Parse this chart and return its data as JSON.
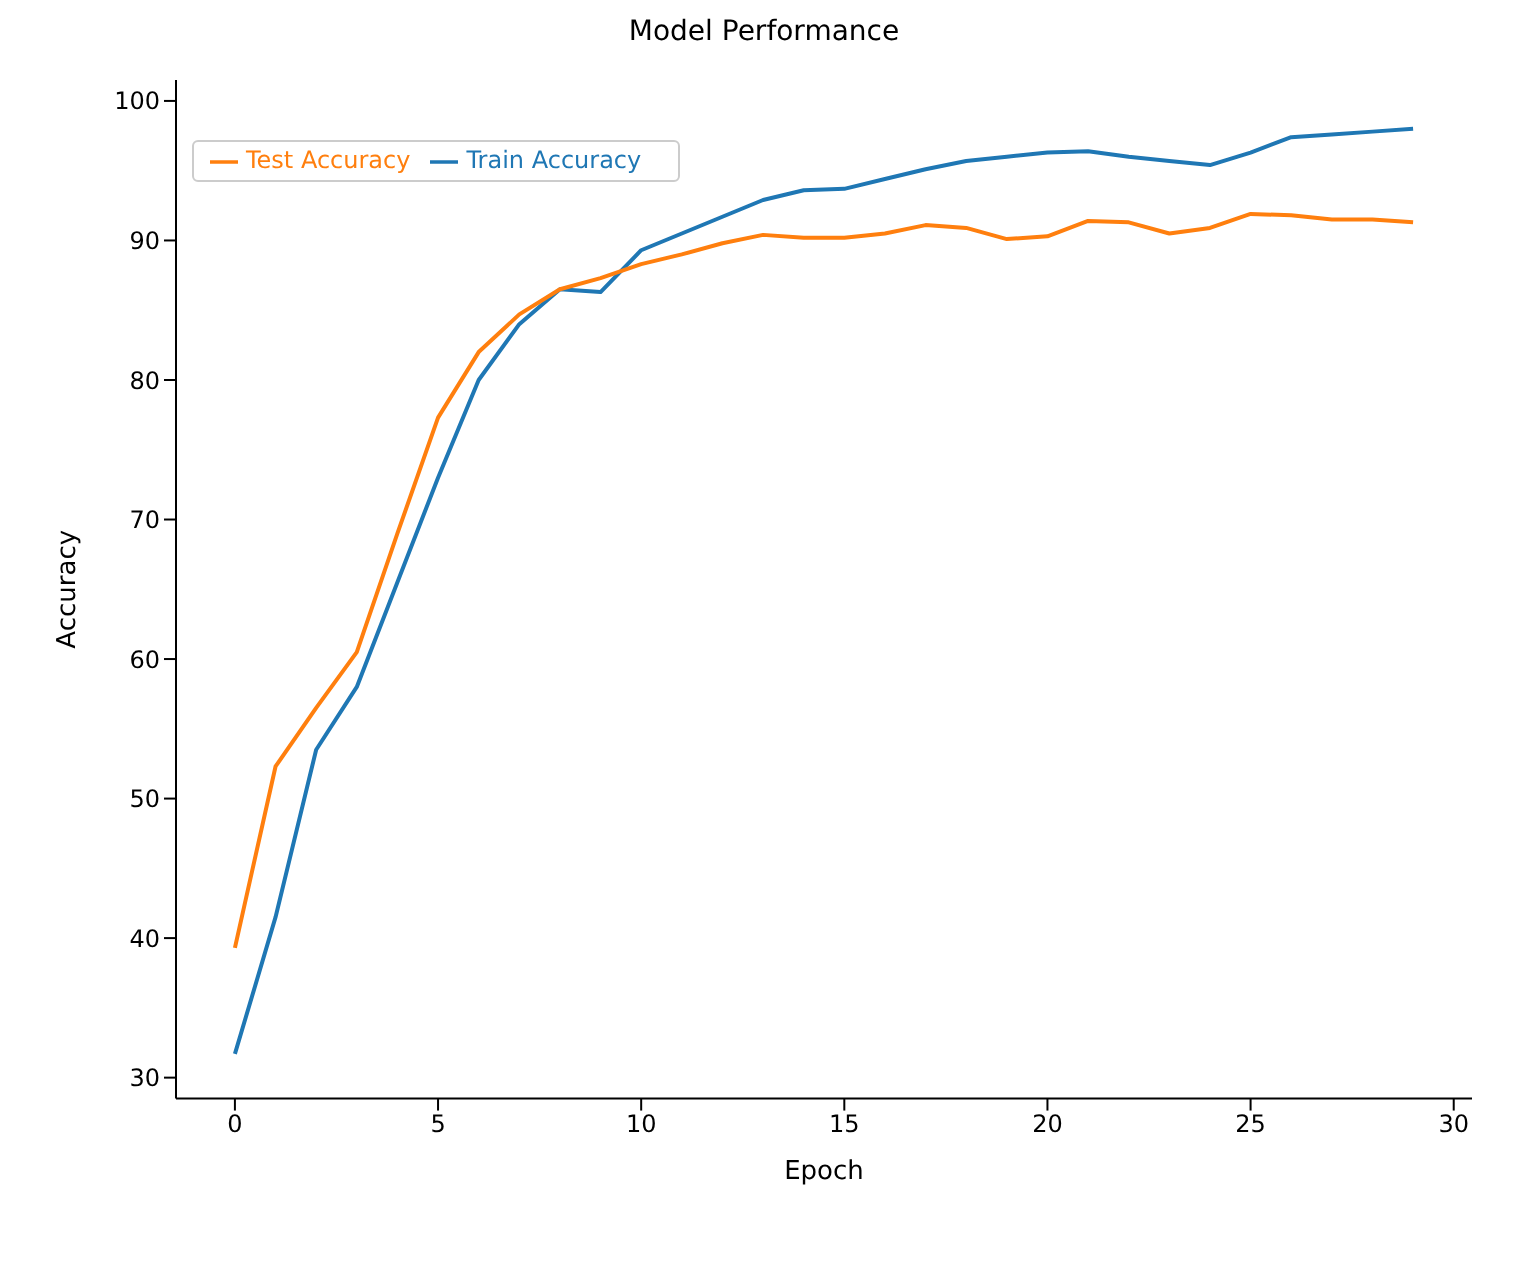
{
  "chart_data": {
    "type": "line",
    "title": "Model Performance",
    "xlabel": "Epoch",
    "ylabel": "Accuracy",
    "x": [
      0,
      1,
      2,
      3,
      4,
      5,
      6,
      7,
      8,
      9,
      10,
      11,
      12,
      13,
      14,
      15,
      16,
      17,
      18,
      19,
      20,
      21,
      22,
      23,
      24,
      25,
      26,
      27,
      28,
      29
    ],
    "series": [
      {
        "name": "Train Accuracy",
        "color": "#1f77b4",
        "values": [
          31.7,
          41.5,
          53.5,
          58,
          65.5,
          73,
          80,
          84,
          86.5,
          86.3,
          89.3,
          90.5,
          91.7,
          92.9,
          93.6,
          93.7,
          94.4,
          95.1,
          95.7,
          96.0,
          96.3,
          96.4,
          96.0,
          95.7,
          95.4,
          96.3,
          97.4,
          97.6,
          97.8,
          98.0
        ]
      },
      {
        "name": "Test Accuracy",
        "color": "#ff7f0e",
        "values": [
          39.3,
          52.3,
          56.5,
          60.5,
          69,
          77.3,
          82,
          84.7,
          86.5,
          87.3,
          88.3,
          89,
          89.8,
          90.4,
          90.2,
          90.2,
          90.5,
          91.1,
          90.9,
          90.1,
          90.3,
          91.4,
          91.3,
          90.5,
          90.9,
          91.9,
          91.8,
          91.5,
          91.5,
          91.3
        ]
      }
    ],
    "xlim": [
      -1.45,
      30.45
    ],
    "xticks": [
      0,
      5,
      10,
      15,
      20,
      25,
      30
    ],
    "ylim": [
      28.5,
      101.5
    ],
    "yticks": [
      30,
      40,
      50,
      60,
      70,
      80,
      90,
      100
    ],
    "legend": "top left",
    "marker": "none",
    "line_style": "solid"
  }
}
